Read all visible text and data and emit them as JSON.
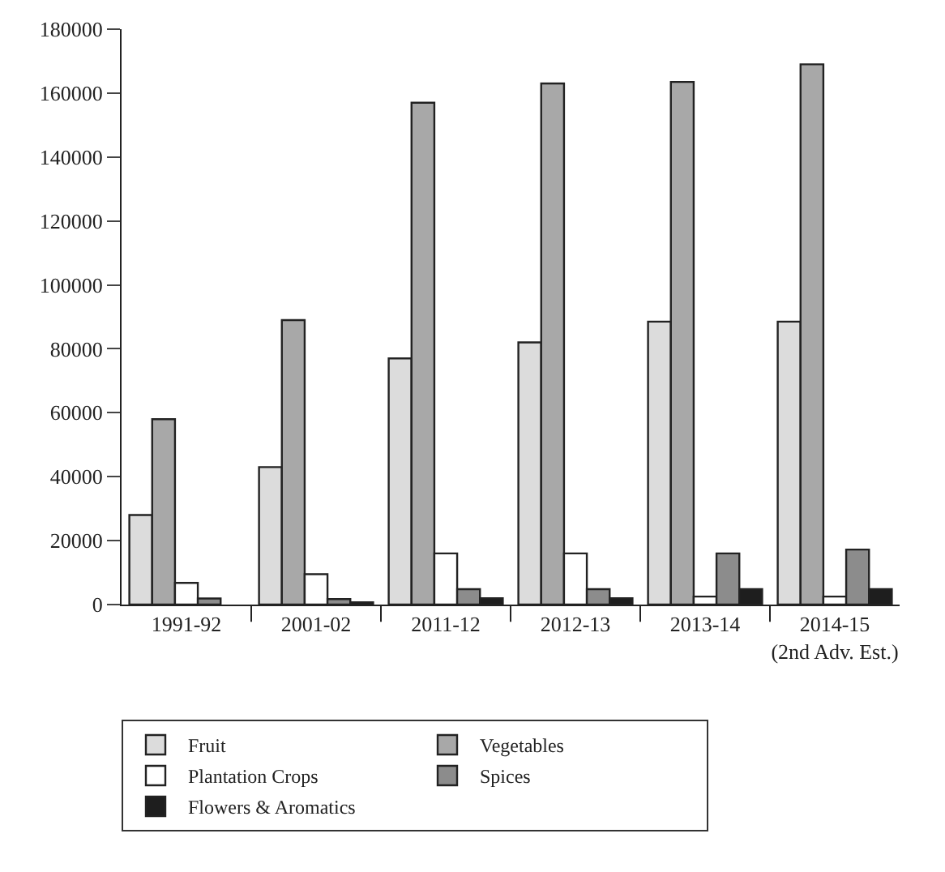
{
  "chart_data": {
    "type": "bar",
    "categories": [
      "1991-92",
      "2001-02",
      "2011-12",
      "2012-13",
      "2013-14",
      "2014-15\n(2nd Adv. Est.)"
    ],
    "series": [
      {
        "name": "Fruit",
        "color": "#dcdcdc",
        "values": [
          28000,
          43000,
          77000,
          82000,
          88500,
          88500
        ]
      },
      {
        "name": "Vegetables",
        "color": "#a8a8a8",
        "values": [
          58000,
          89000,
          157000,
          163000,
          163500,
          169000
        ]
      },
      {
        "name": "Plantation Crops",
        "color": "#ffffff",
        "values": [
          6800,
          9500,
          16000,
          16000,
          2500,
          2500
        ]
      },
      {
        "name": "Spices",
        "color": "#8c8c8c",
        "values": [
          1900,
          1700,
          4800,
          4800,
          16000,
          17200
        ]
      },
      {
        "name": "Flowers & Aromatics",
        "color": "#1e1e1e",
        "values": [
          null,
          700,
          2000,
          2000,
          4800,
          4800
        ]
      }
    ],
    "ylim": [
      0,
      180000
    ],
    "yticks": [
      0,
      20000,
      40000,
      60000,
      80000,
      100000,
      120000,
      140000,
      160000,
      180000
    ],
    "grid": false,
    "legend": "bottom"
  }
}
